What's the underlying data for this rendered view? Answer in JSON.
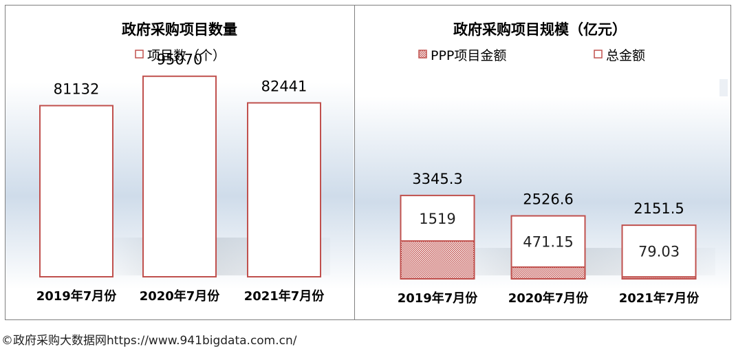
{
  "chart_data": [
    {
      "type": "bar",
      "title": "政府采购项目数量",
      "legend": [
        "项目数（个）"
      ],
      "categories": [
        "2019年7月份",
        "2020年7月份",
        "2021年7月份"
      ],
      "series": [
        {
          "name": "项目数（个）",
          "values": [
            81132,
            95070,
            82441
          ]
        }
      ],
      "value_labels": [
        "81132",
        "95070",
        "82441"
      ],
      "ylim": [
        0,
        110000
      ],
      "colors": {
        "outline": "#c0504d",
        "fill": "#ffffff"
      }
    },
    {
      "type": "bar",
      "title": "政府采购项目规模（亿元）",
      "legend": [
        "PPP项目金额",
        "总金额"
      ],
      "categories": [
        "2019年7月份",
        "2020年7月份",
        "2021年7月份"
      ],
      "series": [
        {
          "name": "PPP项目金额",
          "values": [
            1519,
            471.15,
            79.03
          ]
        },
        {
          "name": "总金额",
          "values": [
            3345.3,
            2526.6,
            2151.5
          ]
        }
      ],
      "ppp_labels": [
        "1519",
        "471.15",
        "79.03"
      ],
      "total_labels": [
        "3345.3",
        "2526.6",
        "2151.5"
      ],
      "ylim": [
        0,
        10000
      ],
      "colors": {
        "outline": "#c0504d",
        "pattern": "#c0504d"
      }
    }
  ],
  "footer": {
    "credit": "©政府采购大数据网https://www.941bigdata.com.cn/"
  }
}
